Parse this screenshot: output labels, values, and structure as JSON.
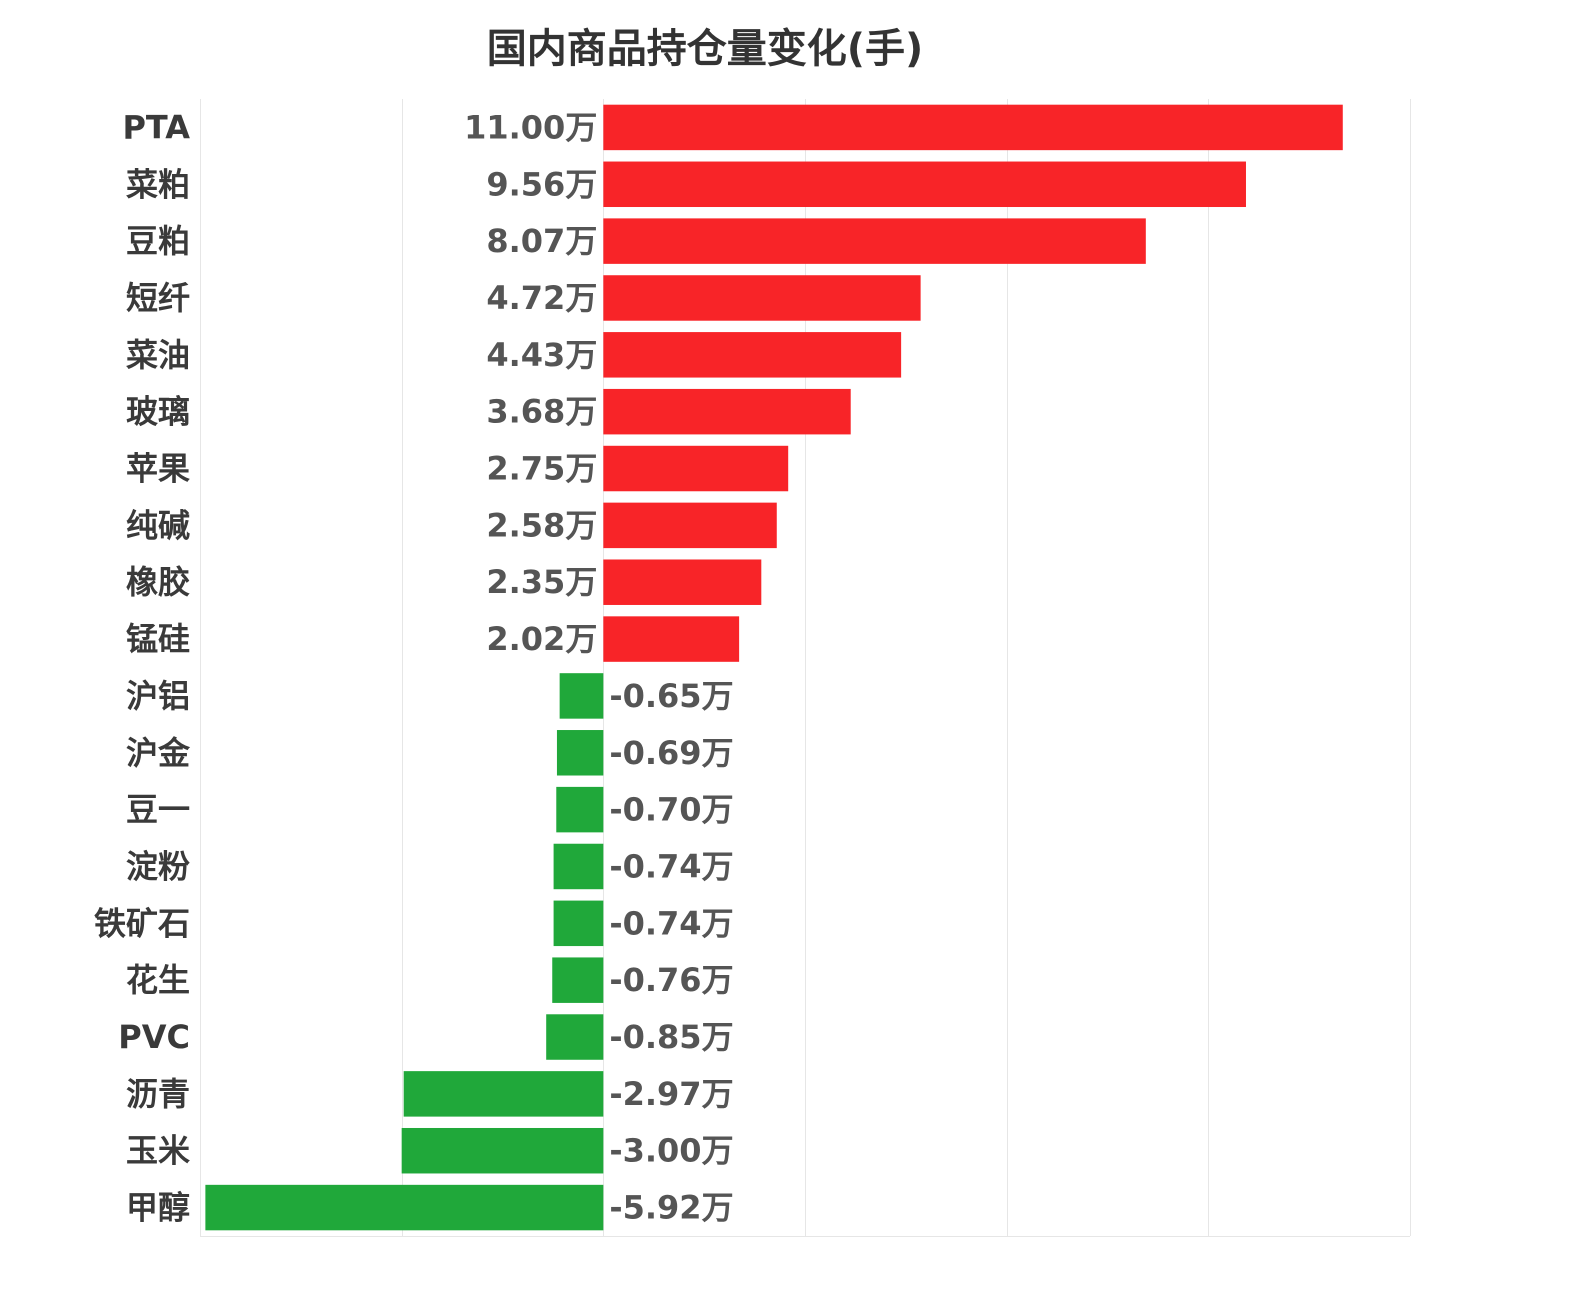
{
  "chart_data": {
    "type": "bar",
    "orientation": "horizontal",
    "title": "国内商品持仓量变化(手)",
    "value_suffix": "万",
    "xlim": [
      -6,
      12
    ],
    "grid": true,
    "colors": {
      "positive": "#f82428",
      "negative": "#20a83a"
    },
    "categories": [
      "PTA",
      "菜粕",
      "豆粕",
      "短纤",
      "菜油",
      "玻璃",
      "苹果",
      "纯碱",
      "橡胶",
      "锰硅",
      "沪铝",
      "沪金",
      "豆一",
      "淀粉",
      "铁矿石",
      "花生",
      "PVC",
      "沥青",
      "玉米",
      "甲醇"
    ],
    "values": [
      11.0,
      9.56,
      8.07,
      4.72,
      4.43,
      3.68,
      2.75,
      2.58,
      2.35,
      2.02,
      -0.65,
      -0.69,
      -0.7,
      -0.74,
      -0.74,
      -0.76,
      -0.85,
      -2.97,
      -3.0,
      -5.92
    ],
    "value_labels": [
      "11.00万",
      "9.56万",
      "8.07万",
      "4.72万",
      "4.43万",
      "3.68万",
      "2.75万",
      "2.58万",
      "2.35万",
      "2.02万",
      "-0.65万",
      "-0.69万",
      "-0.70万",
      "-0.74万",
      "-0.74万",
      "-0.76万",
      "-0.85万",
      "-2.97万",
      "-3.00万",
      "-5.92万"
    ]
  }
}
